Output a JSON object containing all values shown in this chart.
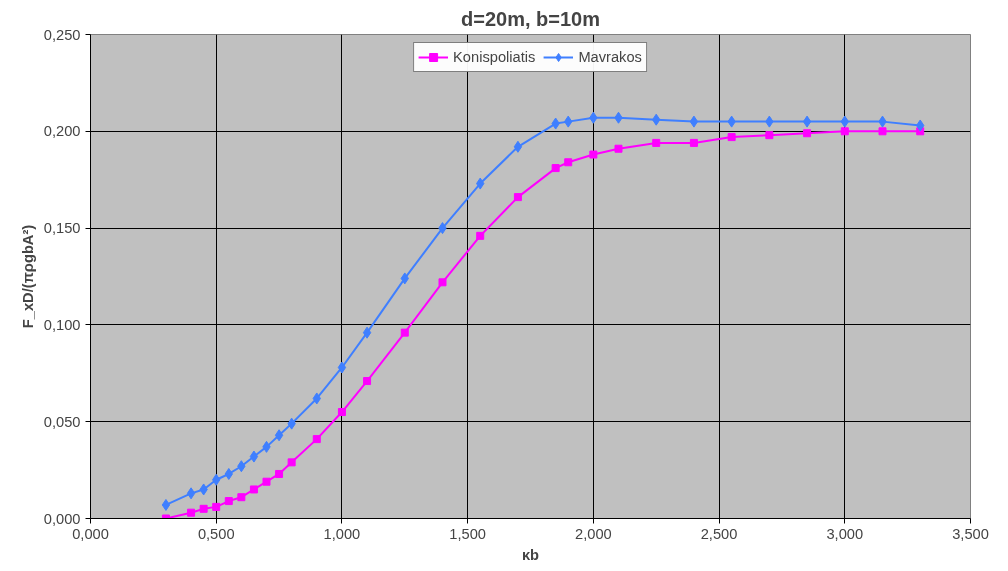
{
  "chart_data": {
    "type": "line",
    "title": "d=20m, b=10m",
    "xlabel": "κb",
    "ylabel": "F_xD/(πρgbA²)",
    "x": [
      0.3,
      0.4,
      0.45,
      0.5,
      0.55,
      0.6,
      0.65,
      0.7,
      0.75,
      0.8,
      0.9,
      1.0,
      1.1,
      1.25,
      1.4,
      1.55,
      1.7,
      1.85,
      1.9,
      2.0,
      2.1,
      2.25,
      2.4,
      2.55,
      2.7,
      2.85,
      3.0,
      3.15,
      3.3
    ],
    "series": [
      {
        "name": "Konispoliatis",
        "color": "#ff00ff",
        "marker": "square",
        "values": [
          0.0,
          0.003,
          0.005,
          0.006,
          0.009,
          0.011,
          0.015,
          0.019,
          0.023,
          0.029,
          0.041,
          0.055,
          0.071,
          0.096,
          0.122,
          0.146,
          0.166,
          0.181,
          0.184,
          0.188,
          0.191,
          0.194,
          0.194,
          0.197,
          0.198,
          0.199,
          0.2,
          0.2,
          0.2
        ]
      },
      {
        "name": "Mavrakos",
        "color": "#3f7fff",
        "marker": "diamond",
        "values": [
          0.007,
          0.013,
          0.015,
          0.02,
          0.023,
          0.027,
          0.032,
          0.037,
          0.043,
          0.049,
          0.062,
          0.078,
          0.096,
          0.124,
          0.15,
          0.173,
          0.192,
          0.204,
          0.205,
          0.207,
          0.207,
          0.206,
          0.205,
          0.205,
          0.205,
          0.205,
          0.205,
          0.205,
          0.203
        ]
      }
    ],
    "xlim": [
      0,
      3.5
    ],
    "ylim": [
      0,
      0.25
    ],
    "xticks": [
      {
        "value": 0,
        "label": "0,000"
      },
      {
        "value": 0.5,
        "label": "0,500"
      },
      {
        "value": 1.0,
        "label": "1,000"
      },
      {
        "value": 1.5,
        "label": "1,500"
      },
      {
        "value": 2.0,
        "label": "2,000"
      },
      {
        "value": 2.5,
        "label": "2,500"
      },
      {
        "value": 3.0,
        "label": "3,000"
      },
      {
        "value": 3.5,
        "label": "3,500"
      }
    ],
    "yticks": [
      {
        "value": 0,
        "label": "0,000"
      },
      {
        "value": 0.05,
        "label": "0,050"
      },
      {
        "value": 0.1,
        "label": "0,100"
      },
      {
        "value": 0.15,
        "label": "0,150"
      },
      {
        "value": 0.2,
        "label": "0,200"
      },
      {
        "value": 0.25,
        "label": "0,250"
      }
    ],
    "grid": true,
    "legend": "top",
    "line_style": "solid"
  }
}
